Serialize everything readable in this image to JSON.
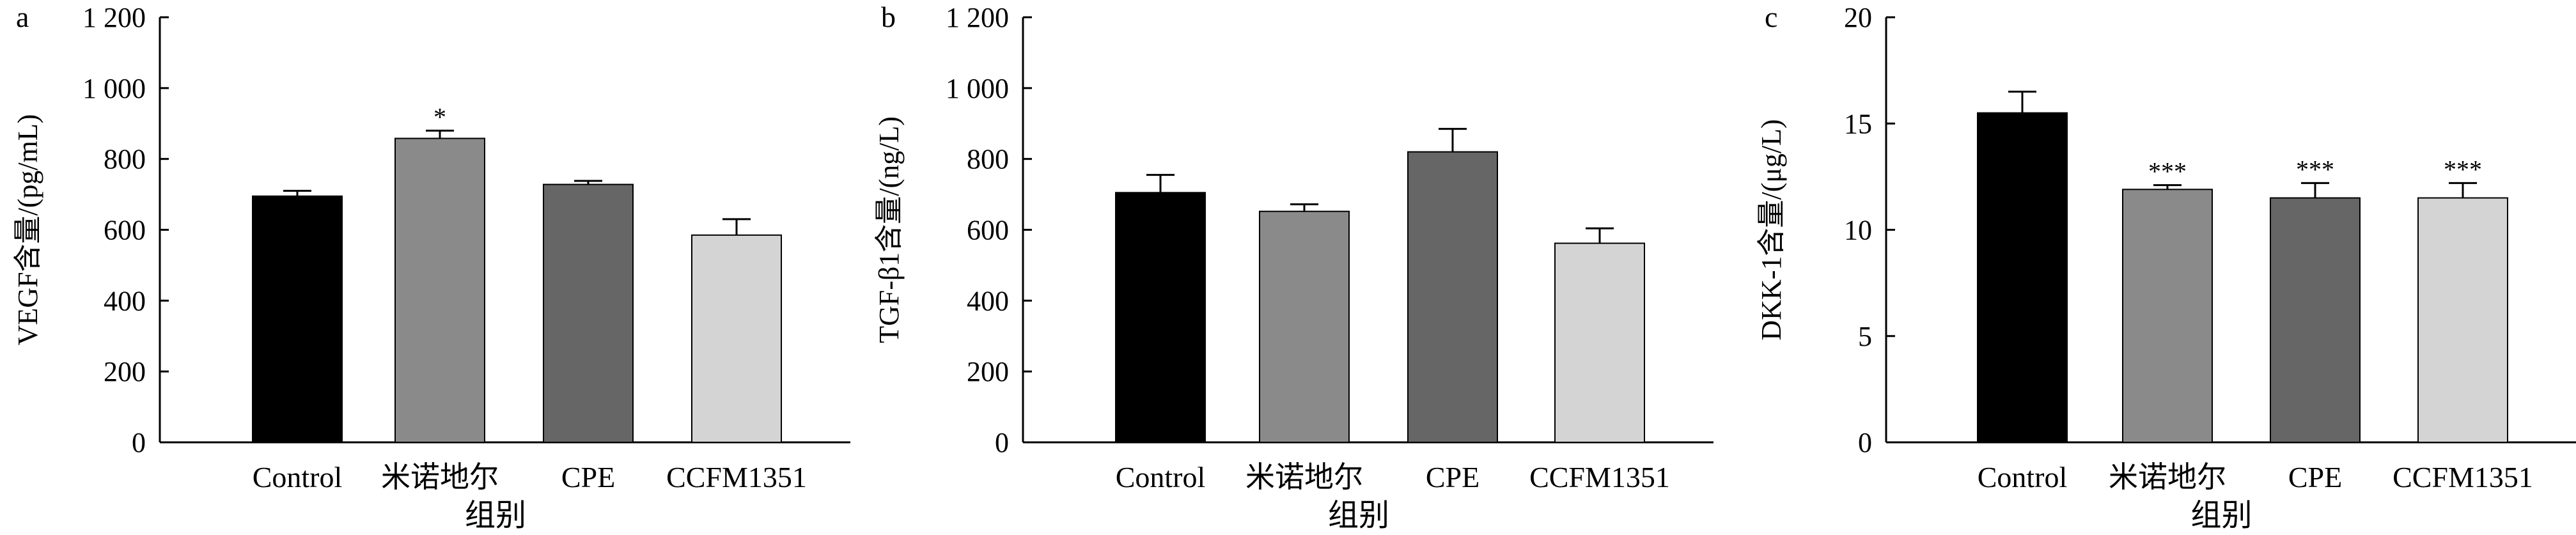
{
  "chart_data": [
    {
      "type": "bar",
      "panel_label": "a",
      "categories": [
        "Control",
        "米诺地尔",
        "CPE",
        "CCFM1351"
      ],
      "values": [
        695,
        858,
        728,
        585
      ],
      "errors": [
        15,
        22,
        10,
        45
      ],
      "annotations": [
        "",
        "*",
        "",
        ""
      ],
      "colors": [
        "#000000",
        "#8a8a8a",
        "#666666",
        "#d4d4d4"
      ],
      "ylabel": "VEGF含量/(pg/mL)",
      "xlabel": "组别",
      "ylim": [
        0,
        1200
      ],
      "yticks": [
        0,
        200,
        400,
        600,
        800,
        1000,
        1200
      ],
      "ytick_labels": [
        "0",
        "200",
        "400",
        "600",
        "800",
        "1 000",
        "1 200"
      ]
    },
    {
      "type": "bar",
      "panel_label": "b",
      "categories": [
        "Control",
        "米诺地尔",
        "CPE",
        "CCFM1351"
      ],
      "values": [
        705,
        652,
        820,
        562
      ],
      "errors": [
        50,
        20,
        65,
        42
      ],
      "annotations": [
        "",
        "",
        "",
        ""
      ],
      "colors": [
        "#000000",
        "#8a8a8a",
        "#666666",
        "#d4d4d4"
      ],
      "ylabel": "TGF-β1含量/(ng/L)",
      "xlabel": "组别",
      "ylim": [
        0,
        1200
      ],
      "yticks": [
        0,
        200,
        400,
        600,
        800,
        1000,
        1200
      ],
      "ytick_labels": [
        "0",
        "200",
        "400",
        "600",
        "800",
        "1 000",
        "1 200"
      ]
    },
    {
      "type": "bar",
      "panel_label": "c",
      "categories": [
        "Control",
        "米诺地尔",
        "CPE",
        "CCFM1351"
      ],
      "values": [
        15.5,
        11.9,
        11.5,
        11.5
      ],
      "errors": [
        1.0,
        0.2,
        0.7,
        0.7
      ],
      "annotations": [
        "",
        "***",
        "***",
        "***"
      ],
      "colors": [
        "#000000",
        "#8a8a8a",
        "#666666",
        "#d4d4d4"
      ],
      "ylabel": "DKK-1含量/(μg/L)",
      "xlabel": "组别",
      "ylim": [
        0,
        20
      ],
      "yticks": [
        0,
        5,
        10,
        15,
        20
      ],
      "ytick_labels": [
        "0",
        "5",
        "10",
        "15",
        "20"
      ]
    }
  ]
}
